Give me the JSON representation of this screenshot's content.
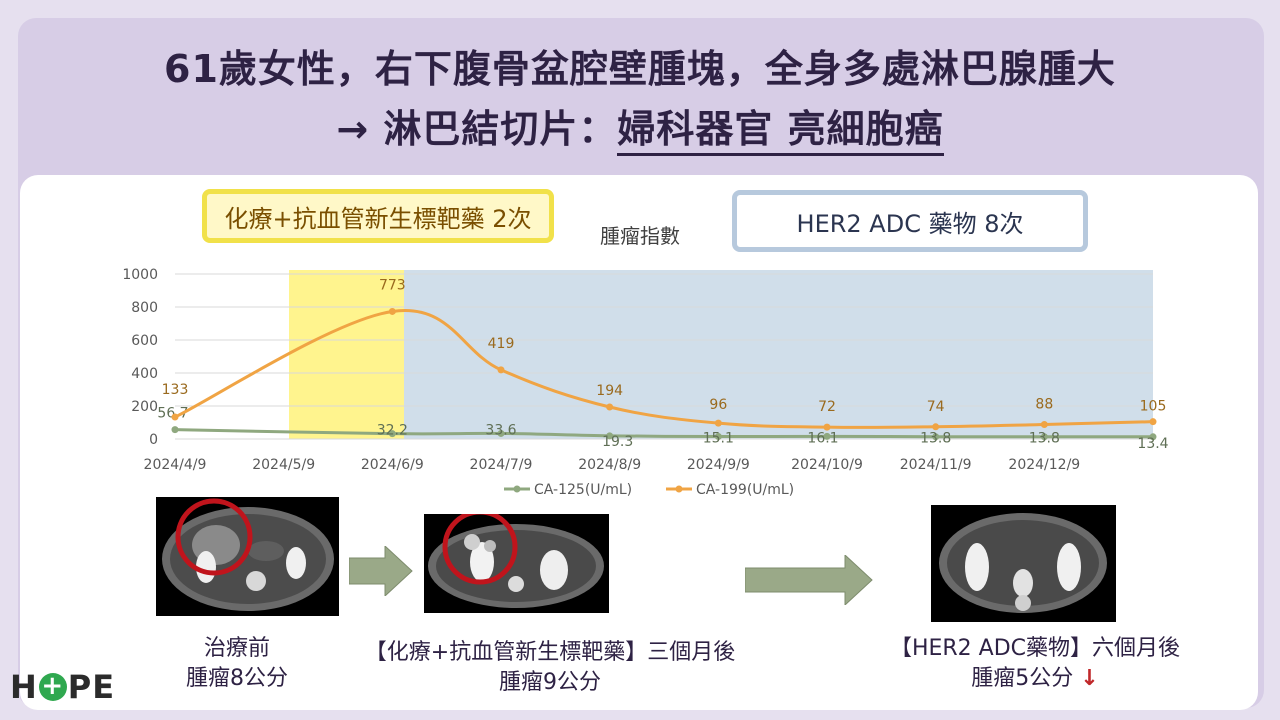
{
  "title": {
    "line1": "61歲女性，右下腹骨盆腔壁腫塊，全身多處淋巴腺腫大",
    "line2_prefix": "→ 淋巴結切片：",
    "line2_emphasis": "婦科器官 亮細胞癌"
  },
  "tags": {
    "phase1": "化療+抗血管新生標靶藥 2次",
    "phase2": "HER2 ADC 藥物 8次"
  },
  "chart_data": {
    "type": "line",
    "title": "腫瘤指數",
    "x": [
      "2024/4/9",
      "2024/5/9",
      "2024/6/9",
      "2024/7/9",
      "2024/8/9",
      "2024/9/9",
      "2024/10/9",
      "2024/11/9",
      "2024/12/9"
    ],
    "ylim": [
      0,
      1000
    ],
    "yticks": [
      0,
      200,
      400,
      600,
      800,
      1000
    ],
    "grid": true,
    "legend_position": "bottom",
    "series": [
      {
        "name": "CA-125(U/mL)",
        "color": "#8fa87f",
        "points": [
          [
            0,
            56.7
          ],
          [
            2,
            32.2
          ],
          [
            3,
            33.6
          ],
          [
            4,
            19.3
          ],
          [
            5,
            15.1
          ],
          [
            6,
            16.1
          ],
          [
            7,
            13.8
          ],
          [
            8,
            13.8
          ],
          [
            9,
            13.4
          ]
        ]
      },
      {
        "name": "CA-199(U/mL)",
        "color": "#f0a444",
        "points": [
          [
            0,
            133
          ],
          [
            2,
            773
          ],
          [
            3,
            419
          ],
          [
            4,
            194
          ],
          [
            5,
            96
          ],
          [
            6,
            72
          ],
          [
            7,
            74
          ],
          [
            8,
            88
          ],
          [
            9,
            105
          ]
        ]
      }
    ],
    "bands": [
      {
        "from": 1,
        "to": 2,
        "color": "#fff27a"
      },
      {
        "from": 2,
        "to": 9,
        "color": "#c8d8e6"
      }
    ]
  },
  "scans": {
    "before": {
      "caption_line1": "治療前",
      "caption_line2": "腫瘤8公分"
    },
    "after_chemo": {
      "caption_line1": "【化療+抗血管新生標靶藥】三個月後",
      "caption_line2": "腫瘤9公分"
    },
    "after_adc": {
      "caption_line1": "【HER2 ADC藥物】六個月後",
      "caption_line2": "腫瘤5公分",
      "trend_icon": "↓"
    }
  },
  "logo": {
    "left": "H",
    "right": "PE"
  }
}
